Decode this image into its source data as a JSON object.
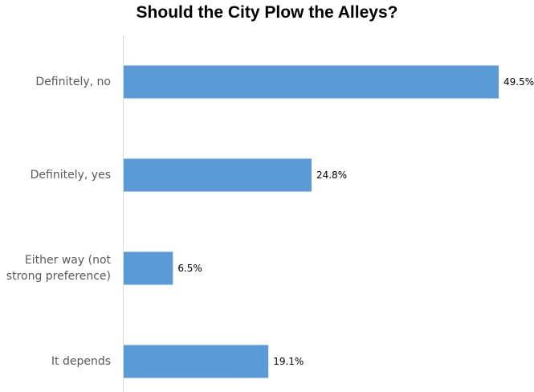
{
  "chart_data": {
    "type": "bar",
    "orientation": "horizontal",
    "title": "Should the City Plow the Alleys?",
    "categories": [
      "Definitely, no",
      "Definitely, yes",
      "Either way (not strong preference)",
      "It depends"
    ],
    "category_lines": [
      [
        "Definitely, no"
      ],
      [
        "Definitely, yes"
      ],
      [
        "Either way (not",
        "strong preference)"
      ],
      [
        "It depends"
      ]
    ],
    "values": [
      49.5,
      24.8,
      6.5,
      19.1
    ],
    "data_labels": [
      "49.5%",
      "24.8%",
      "6.5%",
      "19.1%"
    ],
    "xlim": [
      0,
      50
    ],
    "grid": false,
    "legend": "none",
    "xlabel": "",
    "ylabel": "",
    "colors": {
      "bar": "#5B9BD5",
      "axis": "#D9D9D9",
      "category_text": "#595959",
      "label_text": "#000000",
      "title_text": "#000000"
    }
  }
}
